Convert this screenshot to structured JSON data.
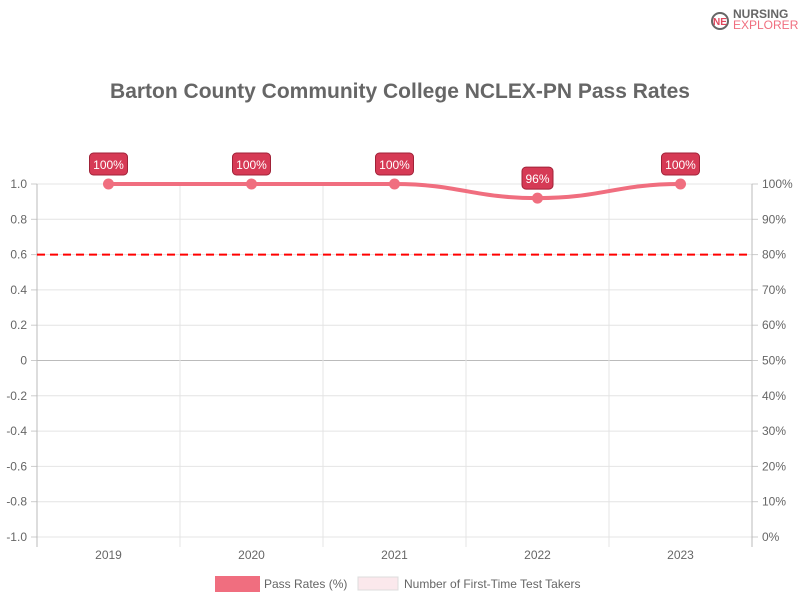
{
  "logo": {
    "line1": "NURSING",
    "line2": "EXPLORER"
  },
  "chart_data": {
    "type": "line",
    "title": "Barton County Community College NCLEX-PN Pass Rates",
    "categories": [
      "2019",
      "2020",
      "2021",
      "2022",
      "2023"
    ],
    "series": [
      {
        "name": "Pass Rates (%)",
        "values": [
          100,
          100,
          100,
          96,
          100
        ],
        "labels": [
          "100%",
          "100%",
          "100%",
          "96%",
          "100%"
        ],
        "color": "#f06e7f"
      }
    ],
    "legend": [
      "Pass Rates (%)",
      "Number of First-Time Test Takers"
    ],
    "legend_placement": "bottom",
    "left_axis": {
      "ylim": [
        -1,
        1
      ],
      "ticks": [
        "1.0",
        "0.8",
        "0.6",
        "0.4",
        "0.2",
        "0",
        "-0.2",
        "-0.4",
        "-0.6",
        "-0.8",
        "-1.0"
      ]
    },
    "right_axis": {
      "ylim": [
        0,
        100
      ],
      "ticks": [
        "100%",
        "90%",
        "80%",
        "70%",
        "60%",
        "50%",
        "40%",
        "30%",
        "20%",
        "10%",
        "0%"
      ]
    },
    "reference_line": {
      "value": 80,
      "color": "#ff0000",
      "style": "dashed"
    },
    "grid": true
  }
}
